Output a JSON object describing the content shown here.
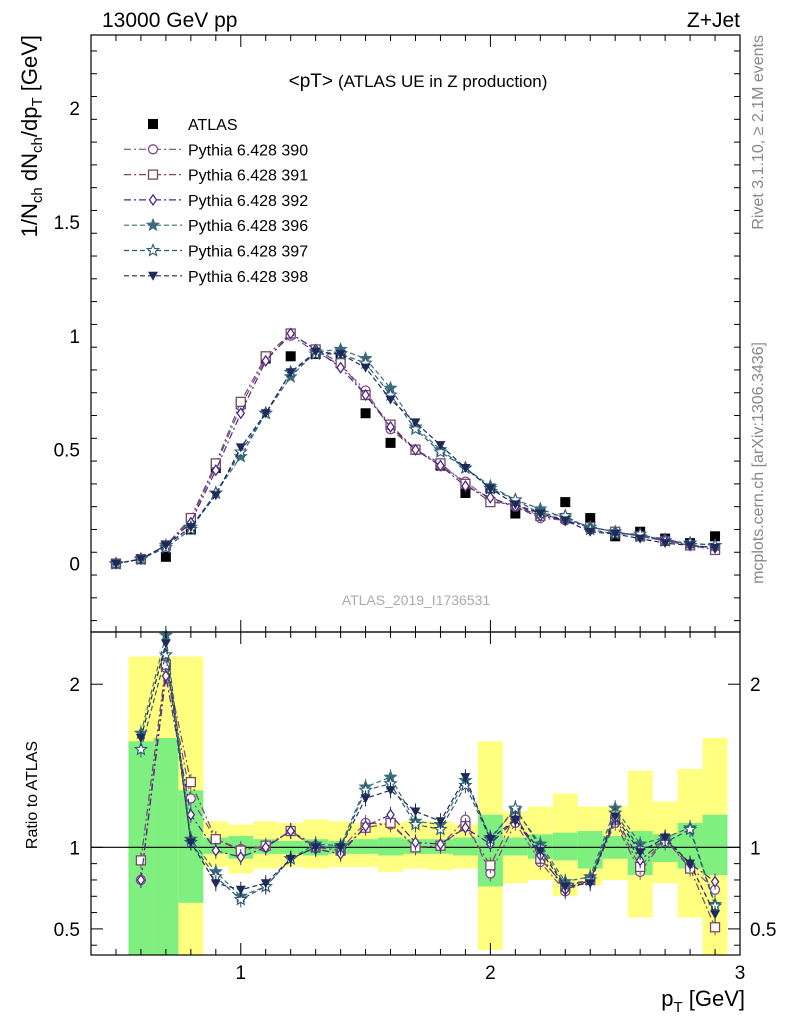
{
  "header": {
    "left": "13000 GeV pp",
    "right": "Z+Jet"
  },
  "side_text": {
    "rivet": "Rivet 3.1.10, ≥ 2.1M events",
    "mcplots": "mcplots.cern.ch [arXiv:1306.3436]"
  },
  "chart_data": [
    {
      "type": "line",
      "title": "<pT> (ATLAS UE in Z production)",
      "title_main": "<pT>",
      "title_sub": "(ATLAS UE in Z production)",
      "watermark": "ATLAS_2019_I1736531",
      "ylabel": "1/N_ch dN_ch/dp_T [GeV]",
      "xlabel": "p_T [GeV]",
      "xlim": [
        0.4,
        3.0
      ],
      "ylim": [
        -0.3,
        2.32
      ],
      "log_scale": false,
      "grid": false,
      "legend_position": "top-left",
      "x_ticks": [
        "1",
        "2",
        "3"
      ],
      "y_ticks": [
        "0",
        "0.5",
        "1",
        "1.5",
        "2"
      ],
      "x": [
        0.5,
        0.6,
        0.7,
        0.8,
        0.9,
        1.0,
        1.1,
        1.2,
        1.3,
        1.4,
        1.5,
        1.6,
        1.7,
        1.8,
        1.9,
        2.0,
        2.1,
        2.2,
        2.3,
        2.4,
        2.5,
        2.6,
        2.7,
        2.8,
        2.9
      ],
      "series": [
        {
          "name": "ATLAS",
          "marker": "square-filled",
          "color": "#000000",
          "values": [
            0.0,
            0.02,
            0.03,
            0.15,
            0.42,
            0.7,
            0.9,
            0.91,
            0.92,
            0.9,
            0.66,
            0.53,
            0.5,
            0.43,
            0.31,
            0.33,
            0.22,
            0.22,
            0.27,
            0.2,
            0.12,
            0.14,
            0.11,
            0.09,
            0.12
          ]
        },
        {
          "name": "Pythia 6.428 390",
          "marker": "circle-open",
          "color": "#7a4e8a",
          "dash": "dashdot",
          "values": [
            0.0,
            0.02,
            0.08,
            0.19,
            0.43,
            0.69,
            0.9,
            1.0,
            0.93,
            0.87,
            0.76,
            0.59,
            0.5,
            0.43,
            0.36,
            0.28,
            0.25,
            0.2,
            0.19,
            0.16,
            0.14,
            0.12,
            0.1,
            0.08,
            0.07
          ]
        },
        {
          "name": "Pythia 6.428 391",
          "marker": "square-open",
          "color": "#7a4a60",
          "dash": "dashdot",
          "values": [
            0.0,
            0.02,
            0.08,
            0.2,
            0.44,
            0.71,
            0.91,
            1.01,
            0.94,
            0.88,
            0.74,
            0.61,
            0.5,
            0.44,
            0.35,
            0.27,
            0.26,
            0.21,
            0.2,
            0.16,
            0.14,
            0.12,
            0.1,
            0.08,
            0.06
          ]
        },
        {
          "name": "Pythia 6.428 392",
          "marker": "diamond-open",
          "color": "#4a2a8a",
          "dash": "dashdot",
          "values": [
            0.0,
            0.02,
            0.08,
            0.18,
            0.41,
            0.66,
            0.89,
            1.01,
            0.94,
            0.86,
            0.74,
            0.6,
            0.5,
            0.43,
            0.34,
            0.29,
            0.25,
            0.21,
            0.19,
            0.16,
            0.14,
            0.12,
            0.11,
            0.08,
            0.07
          ]
        },
        {
          "name": "Pythia 6.428 396",
          "marker": "star-filled",
          "color": "#3a6e7a",
          "dash": "dashed",
          "values": [
            0.0,
            0.02,
            0.08,
            0.16,
            0.31,
            0.47,
            0.66,
            0.82,
            0.93,
            0.94,
            0.9,
            0.77,
            0.6,
            0.5,
            0.42,
            0.34,
            0.28,
            0.24,
            0.2,
            0.16,
            0.14,
            0.12,
            0.1,
            0.09,
            0.08
          ]
        },
        {
          "name": "Pythia 6.428 397",
          "marker": "star-open",
          "color": "#2e5a78",
          "dash": "dashed",
          "values": [
            0.0,
            0.02,
            0.07,
            0.15,
            0.31,
            0.49,
            0.66,
            0.84,
            0.92,
            0.92,
            0.88,
            0.74,
            0.59,
            0.49,
            0.42,
            0.33,
            0.28,
            0.22,
            0.21,
            0.15,
            0.13,
            0.13,
            0.1,
            0.09,
            0.08
          ]
        },
        {
          "name": "Pythia 6.428 398",
          "marker": "triangle-down-filled",
          "color": "#1e2a5a",
          "dash": "dashed",
          "values": [
            0.0,
            0.02,
            0.08,
            0.16,
            0.3,
            0.51,
            0.66,
            0.84,
            0.93,
            0.92,
            0.86,
            0.72,
            0.62,
            0.52,
            0.42,
            0.33,
            0.26,
            0.22,
            0.19,
            0.14,
            0.13,
            0.11,
            0.09,
            0.08,
            0.07
          ]
        }
      ]
    },
    {
      "type": "line",
      "ylabel": "Ratio to ATLAS",
      "xlabel": "p_T [GeV]",
      "xlim": [
        0.4,
        3.0
      ],
      "ylim": [
        0.34,
        2.32
      ],
      "reference_line": 1,
      "y_ticks": [
        "0.5",
        "1",
        "2"
      ],
      "x_ticks": [
        "1",
        "2",
        "3"
      ],
      "bin_edges": [
        0.55,
        0.65,
        0.75,
        0.85,
        0.95,
        1.05,
        1.15,
        1.25,
        1.35,
        1.45,
        1.55,
        1.65,
        1.75,
        1.85,
        1.95,
        2.05,
        2.15,
        2.25,
        2.35,
        2.45,
        2.55,
        2.65,
        2.75,
        2.85,
        2.95
      ],
      "bands": {
        "inner_color": "#7ff07f",
        "outer_color": "#ffff80",
        "inner_lo": [
          0.34,
          0.34,
          0.66,
          0.96,
          0.93,
          0.96,
          0.96,
          0.95,
          0.96,
          0.96,
          0.95,
          0.96,
          0.96,
          0.95,
          0.76,
          0.95,
          0.93,
          0.92,
          0.87,
          0.93,
          0.83,
          0.91,
          0.87,
          0.83,
          0.82
        ],
        "inner_hi": [
          1.65,
          1.67,
          1.35,
          1.06,
          1.07,
          1.05,
          1.04,
          1.05,
          1.04,
          1.05,
          1.06,
          1.05,
          1.05,
          1.06,
          1.2,
          1.06,
          1.08,
          1.09,
          1.1,
          1.07,
          1.1,
          1.08,
          1.15,
          1.2,
          1.18
        ],
        "outer_lo": [
          0.34,
          0.34,
          0.34,
          0.88,
          0.84,
          0.87,
          0.88,
          0.87,
          0.88,
          0.88,
          0.85,
          0.87,
          0.86,
          0.87,
          0.37,
          0.78,
          0.8,
          0.7,
          0.77,
          0.8,
          0.57,
          0.78,
          0.57,
          0.34,
          0.68
        ],
        "outer_hi": [
          2.17,
          2.17,
          2.17,
          1.16,
          1.14,
          1.16,
          1.15,
          1.17,
          1.16,
          1.15,
          1.15,
          1.16,
          1.16,
          1.14,
          1.65,
          1.22,
          1.25,
          1.33,
          1.25,
          1.25,
          1.47,
          1.28,
          1.48,
          1.67,
          1.57
        ]
      },
      "x": [
        0.6,
        0.7,
        0.8,
        0.9,
        1.0,
        1.1,
        1.2,
        1.3,
        1.4,
        1.5,
        1.6,
        1.7,
        1.8,
        1.9,
        2.0,
        2.1,
        2.2,
        2.3,
        2.4,
        2.5,
        2.6,
        2.7,
        2.8,
        2.9
      ],
      "series": [
        {
          "name": "Pythia 6.428 390",
          "values": [
            0.8,
            2.1,
            1.3,
            1.05,
            0.99,
            1.0,
            1.1,
            1.01,
            0.99,
            1.15,
            1.14,
            1.0,
            1.01,
            1.17,
            0.84,
            1.15,
            0.91,
            0.73,
            0.8,
            1.15,
            0.85,
            1.05,
            0.88,
            0.74
          ]
        },
        {
          "name": "Pythia 6.428 391",
          "values": [
            0.92,
            2.12,
            1.4,
            1.05,
            0.98,
            1.01,
            1.1,
            1.0,
            0.98,
            1.12,
            1.15,
            1.0,
            1.01,
            1.13,
            0.89,
            1.2,
            0.93,
            0.76,
            0.8,
            1.17,
            0.88,
            1.05,
            0.87,
            0.51
          ]
        },
        {
          "name": "Pythia 6.428 392",
          "values": [
            0.8,
            2.05,
            1.2,
            0.98,
            0.94,
            1.0,
            1.1,
            0.99,
            0.96,
            1.13,
            1.2,
            1.03,
            1.02,
            1.12,
            1.02,
            1.17,
            0.95,
            0.74,
            0.8,
            1.18,
            0.92,
            1.05,
            0.9,
            0.79
          ]
        },
        {
          "name": "Pythia 6.428 396",
          "values": [
            1.7,
            2.3,
            1.05,
            0.85,
            0.7,
            0.76,
            0.93,
            1.02,
            1.01,
            1.37,
            1.43,
            1.16,
            1.14,
            1.41,
            1.06,
            1.23,
            1.02,
            0.79,
            0.82,
            1.24,
            1.02,
            1.06,
            1.12,
            0.65
          ]
        },
        {
          "name": "Pythia 6.428 397",
          "values": [
            1.6,
            2.18,
            1.03,
            0.82,
            0.68,
            0.76,
            0.93,
            1.0,
            1.0,
            1.35,
            1.39,
            1.14,
            1.11,
            1.38,
            1.05,
            1.24,
            1.0,
            0.77,
            0.8,
            1.21,
            0.99,
            1.03,
            1.11,
            0.64
          ]
        },
        {
          "name": "Pythia 6.428 398",
          "values": [
            1.67,
            2.25,
            1.03,
            0.78,
            0.74,
            0.78,
            0.93,
            1.0,
            1.0,
            1.3,
            1.35,
            1.22,
            1.16,
            1.43,
            1.05,
            1.17,
            0.98,
            0.76,
            0.78,
            1.19,
            0.97,
            1.06,
            0.9,
            0.59
          ]
        }
      ]
    }
  ]
}
